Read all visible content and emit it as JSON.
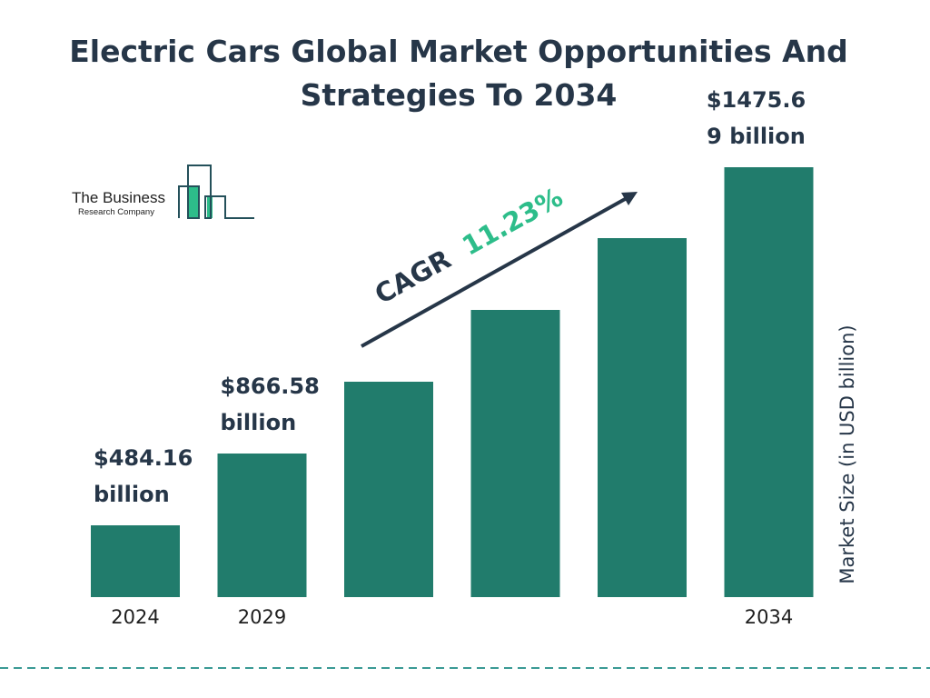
{
  "chart_data": {
    "type": "bar",
    "title": "Electric Cars Global Market Opportunities And Strategies To 2034",
    "title_lines": [
      "Electric Cars Global Market Opportunities And",
      "Strategies To 2034"
    ],
    "ylabel": "Market Size (in USD billion)",
    "xlabel": "",
    "categories": [
      "2024",
      "2029",
      "",
      "",
      "",
      "2034"
    ],
    "values": [
      484.16,
      866.58,
      null,
      null,
      null,
      1475.69
    ],
    "data_labels": [
      [
        "$484.16",
        "billion"
      ],
      [
        "$866.58",
        "billion"
      ],
      [],
      [],
      [],
      [
        "$1475.6",
        "9 billion"
      ]
    ],
    "annotation": {
      "prefix": "CAGR",
      "value": "11.23%"
    },
    "grid": false,
    "legend": "none",
    "colors": {
      "bar": "#217C6C",
      "text": "#263648",
      "cagr": "#2DBD8A",
      "divider": "#3A9A95"
    }
  },
  "logo": {
    "line1": "The Business",
    "line2": "Research Company"
  }
}
